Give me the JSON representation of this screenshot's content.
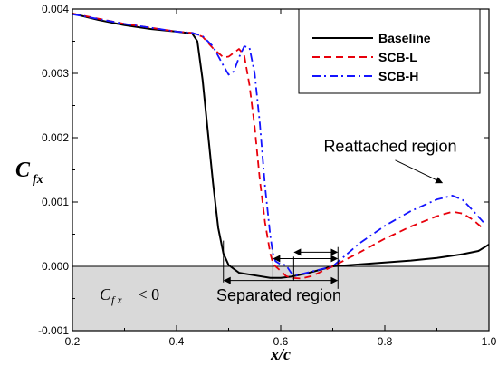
{
  "chart_data": {
    "type": "line",
    "xlabel": "x/c",
    "ylabel_main": "C",
    "ylabel_sub": "fx",
    "xlim": [
      0.2,
      1.0
    ],
    "ylim": [
      -0.001,
      0.004
    ],
    "x_ticks": [
      "0.2",
      "0.4",
      "0.6",
      "0.8",
      "1.0"
    ],
    "y_ticks": [
      "-0.001",
      "0.000",
      "0.001",
      "0.002",
      "0.003",
      "0.004"
    ],
    "shaded_region": {
      "y_from": -0.001,
      "y_to": 0.0,
      "label": "C",
      "label_sub": "f x",
      "label_rest": " < 0"
    },
    "legend_position": "top-right",
    "series": [
      {
        "name": "Baseline",
        "color": "#000000",
        "dash": "solid",
        "x": [
          0.2,
          0.25,
          0.3,
          0.35,
          0.4,
          0.43,
          0.44,
          0.45,
          0.46,
          0.47,
          0.48,
          0.49,
          0.5,
          0.52,
          0.55,
          0.58,
          0.6,
          0.62,
          0.65,
          0.7,
          0.75,
          0.8,
          0.85,
          0.9,
          0.95,
          0.98,
          1.0
        ],
        "y": [
          0.00393,
          0.00383,
          0.00375,
          0.00369,
          0.00365,
          0.00362,
          0.0035,
          0.0029,
          0.0021,
          0.0013,
          0.0006,
          0.0002,
          2e-05,
          -0.0001,
          -0.00014,
          -0.00018,
          -0.00018,
          -0.00016,
          -0.00011,
          0.0,
          3e-05,
          6e-05,
          9e-05,
          0.00013,
          0.00019,
          0.00024,
          0.00034
        ]
      },
      {
        "name": "SCB-L",
        "color": "#e8000b",
        "dash": "dashed",
        "x": [
          0.2,
          0.3,
          0.4,
          0.43,
          0.45,
          0.47,
          0.49,
          0.5,
          0.52,
          0.53,
          0.54,
          0.55,
          0.56,
          0.57,
          0.58,
          0.585,
          0.59,
          0.6,
          0.61,
          0.62,
          0.64,
          0.66,
          0.7,
          0.75,
          0.8,
          0.85,
          0.9,
          0.93,
          0.95,
          0.97,
          0.99
        ],
        "y": [
          0.00393,
          0.00377,
          0.00365,
          0.00363,
          0.00357,
          0.00339,
          0.00325,
          0.00326,
          0.00338,
          0.00328,
          0.00282,
          0.00217,
          0.00134,
          0.00068,
          0.0002,
          5e-05,
          0.0,
          -7e-05,
          -0.00015,
          -0.00018,
          -0.00019,
          -0.00015,
          0.0,
          0.00021,
          0.00043,
          0.00062,
          0.00078,
          0.00085,
          0.00082,
          0.00072,
          0.00058
        ]
      },
      {
        "name": "SCB-H",
        "color": "#1414ff",
        "dash": "dashdot",
        "x": [
          0.2,
          0.3,
          0.4,
          0.43,
          0.45,
          0.47,
          0.49,
          0.5,
          0.51,
          0.52,
          0.53,
          0.54,
          0.55,
          0.56,
          0.57,
          0.58,
          0.585,
          0.59,
          0.6,
          0.61,
          0.62,
          0.63,
          0.64,
          0.66,
          0.7,
          0.75,
          0.8,
          0.85,
          0.9,
          0.93,
          0.95,
          0.97,
          0.99
        ],
        "y": [
          0.00392,
          0.00377,
          0.00365,
          0.00363,
          0.00358,
          0.00342,
          0.00312,
          0.00298,
          0.00303,
          0.00325,
          0.00342,
          0.0034,
          0.003,
          0.00222,
          0.00124,
          0.00048,
          0.0002,
          8e-05,
          3e-05,
          2e-05,
          -0.0001,
          -0.00014,
          -0.00012,
          -8e-05,
          0.0,
          0.00035,
          0.00063,
          0.00086,
          0.00104,
          0.0011,
          0.00103,
          0.00086,
          0.00068
        ]
      }
    ],
    "annotations": [
      {
        "text": "Reattached region"
      },
      {
        "text": "Separated region"
      }
    ]
  }
}
